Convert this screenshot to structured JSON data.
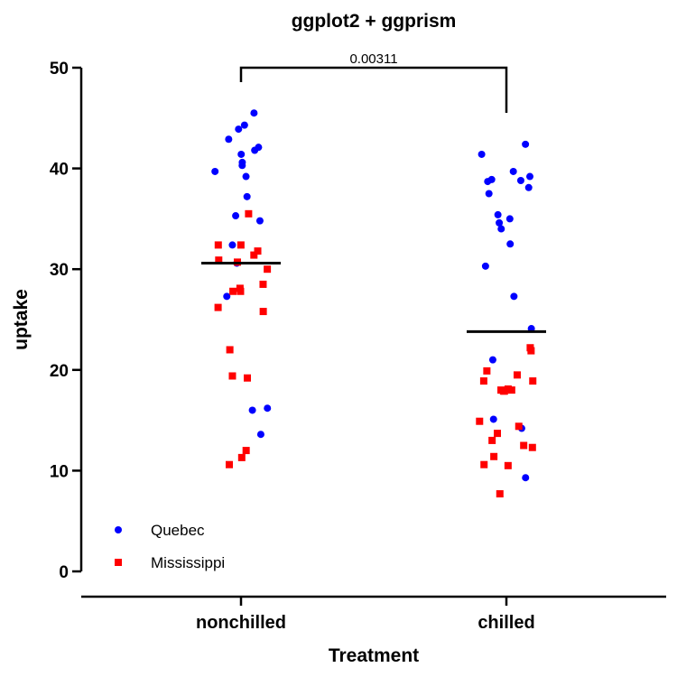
{
  "chart_data": {
    "type": "scatter",
    "title": "ggplot2 + ggprism",
    "xlabel": "Treatment",
    "ylabel": "uptake",
    "categories": [
      "nonchilled",
      "chilled"
    ],
    "ylim": [
      0,
      50
    ],
    "yticks": [
      0,
      10,
      20,
      30,
      40,
      50
    ],
    "grid": false,
    "legend_position": "bottom-left",
    "colors": {
      "Quebec": "#0000ff",
      "Mississippi": "#ff0000",
      "axis": "#000000"
    },
    "series": [
      {
        "name": "Quebec",
        "marker": "circle",
        "points": [
          {
            "x": "nonchilled",
            "y": 45.5
          },
          {
            "x": "nonchilled",
            "y": 44.3
          },
          {
            "x": "nonchilled",
            "y": 43.9
          },
          {
            "x": "nonchilled",
            "y": 42.9
          },
          {
            "x": "nonchilled",
            "y": 42.1
          },
          {
            "x": "nonchilled",
            "y": 41.8
          },
          {
            "x": "nonchilled",
            "y": 41.4
          },
          {
            "x": "nonchilled",
            "y": 40.6
          },
          {
            "x": "nonchilled",
            "y": 40.3
          },
          {
            "x": "nonchilled",
            "y": 39.7
          },
          {
            "x": "nonchilled",
            "y": 39.2
          },
          {
            "x": "nonchilled",
            "y": 37.2
          },
          {
            "x": "nonchilled",
            "y": 35.3
          },
          {
            "x": "nonchilled",
            "y": 34.8
          },
          {
            "x": "nonchilled",
            "y": 32.4
          },
          {
            "x": "nonchilled",
            "y": 30.6
          },
          {
            "x": "nonchilled",
            "y": 27.3
          },
          {
            "x": "nonchilled",
            "y": 16.2
          },
          {
            "x": "nonchilled",
            "y": 16.0
          },
          {
            "x": "nonchilled",
            "y": 13.6
          },
          {
            "x": "chilled",
            "y": 42.4
          },
          {
            "x": "chilled",
            "y": 41.4
          },
          {
            "x": "chilled",
            "y": 39.7
          },
          {
            "x": "chilled",
            "y": 39.2
          },
          {
            "x": "chilled",
            "y": 38.9
          },
          {
            "x": "chilled",
            "y": 38.8
          },
          {
            "x": "chilled",
            "y": 38.7
          },
          {
            "x": "chilled",
            "y": 38.1
          },
          {
            "x": "chilled",
            "y": 37.5
          },
          {
            "x": "chilled",
            "y": 35.4
          },
          {
            "x": "chilled",
            "y": 35.0
          },
          {
            "x": "chilled",
            "y": 34.6
          },
          {
            "x": "chilled",
            "y": 34.0
          },
          {
            "x": "chilled",
            "y": 32.5
          },
          {
            "x": "chilled",
            "y": 30.3
          },
          {
            "x": "chilled",
            "y": 27.3
          },
          {
            "x": "chilled",
            "y": 24.1
          },
          {
            "x": "chilled",
            "y": 21.0
          },
          {
            "x": "chilled",
            "y": 15.1
          },
          {
            "x": "chilled",
            "y": 14.2
          },
          {
            "x": "chilled",
            "y": 9.3
          }
        ]
      },
      {
        "name": "Mississippi",
        "marker": "square",
        "points": [
          {
            "x": "nonchilled",
            "y": 35.5
          },
          {
            "x": "nonchilled",
            "y": 32.4
          },
          {
            "x": "nonchilled",
            "y": 32.4
          },
          {
            "x": "nonchilled",
            "y": 31.8
          },
          {
            "x": "nonchilled",
            "y": 31.4
          },
          {
            "x": "nonchilled",
            "y": 30.9
          },
          {
            "x": "nonchilled",
            "y": 30.7
          },
          {
            "x": "nonchilled",
            "y": 30.0
          },
          {
            "x": "nonchilled",
            "y": 28.5
          },
          {
            "x": "nonchilled",
            "y": 28.1
          },
          {
            "x": "nonchilled",
            "y": 27.8
          },
          {
            "x": "nonchilled",
            "y": 27.8
          },
          {
            "x": "nonchilled",
            "y": 26.2
          },
          {
            "x": "nonchilled",
            "y": 25.8
          },
          {
            "x": "nonchilled",
            "y": 22.0
          },
          {
            "x": "nonchilled",
            "y": 19.4
          },
          {
            "x": "nonchilled",
            "y": 19.2
          },
          {
            "x": "nonchilled",
            "y": 12.0
          },
          {
            "x": "nonchilled",
            "y": 11.3
          },
          {
            "x": "nonchilled",
            "y": 10.6
          },
          {
            "x": "chilled",
            "y": 22.2
          },
          {
            "x": "chilled",
            "y": 21.9
          },
          {
            "x": "chilled",
            "y": 19.9
          },
          {
            "x": "chilled",
            "y": 19.5
          },
          {
            "x": "chilled",
            "y": 18.9
          },
          {
            "x": "chilled",
            "y": 18.9
          },
          {
            "x": "chilled",
            "y": 18.1
          },
          {
            "x": "chilled",
            "y": 18.0
          },
          {
            "x": "chilled",
            "y": 18.0
          },
          {
            "x": "chilled",
            "y": 17.9
          },
          {
            "x": "chilled",
            "y": 17.9
          },
          {
            "x": "chilled",
            "y": 14.9
          },
          {
            "x": "chilled",
            "y": 14.4
          },
          {
            "x": "chilled",
            "y": 13.7
          },
          {
            "x": "chilled",
            "y": 13.0
          },
          {
            "x": "chilled",
            "y": 12.5
          },
          {
            "x": "chilled",
            "y": 12.3
          },
          {
            "x": "chilled",
            "y": 11.4
          },
          {
            "x": "chilled",
            "y": 10.6
          },
          {
            "x": "chilled",
            "y": 10.5
          },
          {
            "x": "chilled",
            "y": 7.7
          }
        ]
      }
    ],
    "means": [
      {
        "x": "nonchilled",
        "y": 30.6
      },
      {
        "x": "chilled",
        "y": 23.8
      }
    ],
    "significance": {
      "group1": "nonchilled",
      "group2": "chilled",
      "label": "0.00311",
      "y": 50
    }
  }
}
